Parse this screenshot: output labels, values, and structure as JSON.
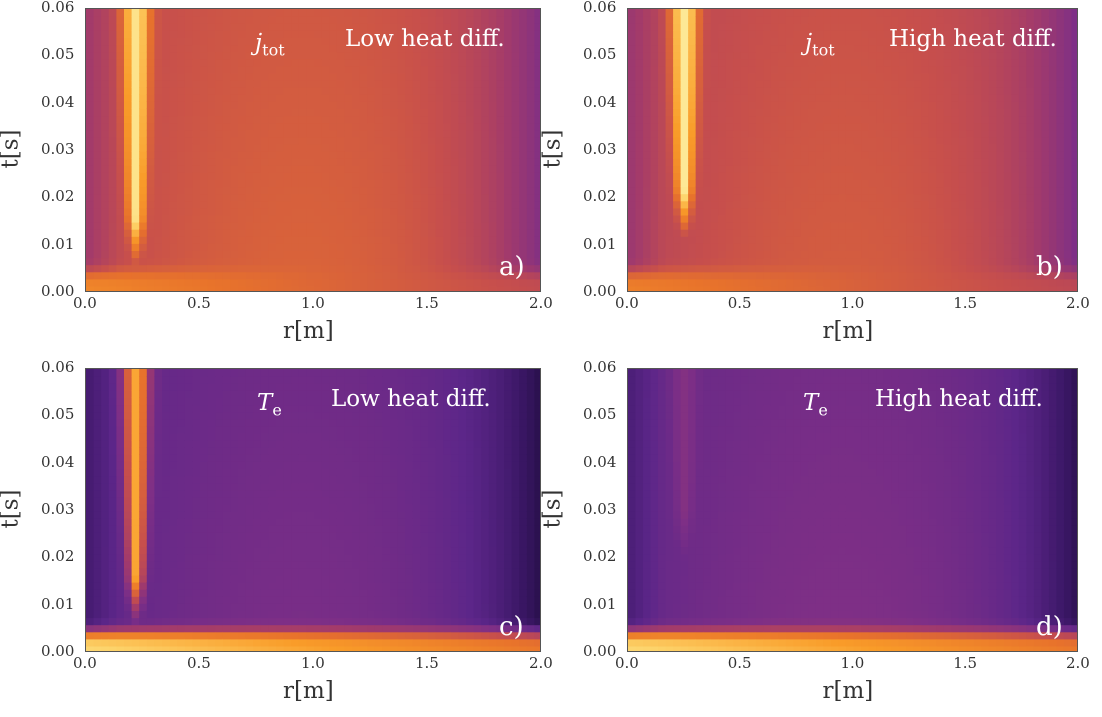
{
  "chart_data": [
    {
      "type": "heatmap",
      "panel_label": "a)",
      "quantity_symbol": "j",
      "quantity_subscript": "tot",
      "annotation": "Low heat diff.",
      "xlabel": "r[m]",
      "ylabel": "t[s]",
      "xlim": [
        0.0,
        2.0
      ],
      "ylim": [
        0.0,
        0.06
      ],
      "xticks": [
        "0.0",
        "0.5",
        "1.0",
        "1.5",
        "2.0"
      ],
      "yticks": [
        "0.00",
        "0.01",
        "0.02",
        "0.03",
        "0.04",
        "0.05",
        "0.06"
      ],
      "colormap": [
        "#1e0c3a",
        "#3b1766",
        "#5c2689",
        "#7e2f86",
        "#a13a6c",
        "#c74f4c",
        "#e8732b",
        "#f99c29",
        "#fdd46b",
        "#fdf0a6"
      ],
      "features": {
        "channel_r": 0.22,
        "channel_onset_t": 0.006,
        "base_level": 0.52,
        "channel_level": 0.95,
        "early_layer_level": 0.72
      }
    },
    {
      "type": "heatmap",
      "panel_label": "b)",
      "quantity_symbol": "j",
      "quantity_subscript": "tot",
      "annotation": "High heat diff.",
      "xlabel": "r[m]",
      "ylabel": "t[s]",
      "xlim": [
        0.0,
        2.0
      ],
      "ylim": [
        0.0,
        0.06
      ],
      "xticks": [
        "0.0",
        "0.5",
        "1.0",
        "1.5",
        "2.0"
      ],
      "yticks": [
        "0.00",
        "0.01",
        "0.02",
        "0.03",
        "0.04",
        "0.05",
        "0.06"
      ],
      "colormap": [
        "#1e0c3a",
        "#3b1766",
        "#5c2689",
        "#7e2f86",
        "#a13a6c",
        "#c74f4c",
        "#e8732b",
        "#f99c29",
        "#fdd46b",
        "#fdf0a6"
      ],
      "features": {
        "channel_r": 0.25,
        "channel_onset_t": 0.012,
        "base_level": 0.5,
        "channel_level": 0.97,
        "early_layer_level": 0.7
      }
    },
    {
      "type": "heatmap",
      "panel_label": "c)",
      "quantity_symbol": "T",
      "quantity_subscript": "e",
      "annotation": "Low heat diff.",
      "xlabel": "r[m]",
      "ylabel": "t[s]",
      "xlim": [
        0.0,
        2.0
      ],
      "ylim": [
        0.0,
        0.06
      ],
      "xticks": [
        "0.0",
        "0.5",
        "1.0",
        "1.5",
        "2.0"
      ],
      "yticks": [
        "0.00",
        "0.01",
        "0.02",
        "0.03",
        "0.04",
        "0.05",
        "0.06"
      ],
      "colormap": [
        "#1e0c3a",
        "#3b1766",
        "#5c2689",
        "#7e2f86",
        "#a13a6c",
        "#c74f4c",
        "#e8732b",
        "#f99c29",
        "#fdd46b",
        "#fdf0a6"
      ],
      "features": {
        "channel_r": 0.22,
        "channel_onset_t": 0.006,
        "base_level": 0.22,
        "channel_level": 0.8,
        "early_layer_level": 0.9
      }
    },
    {
      "type": "heatmap",
      "panel_label": "d)",
      "quantity_symbol": "T",
      "quantity_subscript": "e",
      "annotation": "High heat diff.",
      "xlabel": "r[m]",
      "ylabel": "t[s]",
      "xlim": [
        0.0,
        2.0
      ],
      "ylim": [
        0.0,
        0.06
      ],
      "xticks": [
        "0.0",
        "0.5",
        "1.0",
        "1.5",
        "2.0"
      ],
      "yticks": [
        "0.00",
        "0.01",
        "0.02",
        "0.03",
        "0.04",
        "0.05",
        "0.06"
      ],
      "colormap": [
        "#1e0c3a",
        "#3b1766",
        "#5c2689",
        "#7e2f86",
        "#a13a6c",
        "#c74f4c",
        "#e8732b",
        "#f99c29",
        "#fdd46b",
        "#fdf0a6"
      ],
      "features": {
        "channel_r": 0.25,
        "channel_onset_t": 0.02,
        "base_level": 0.24,
        "channel_level": 0.35,
        "early_layer_level": 0.9
      }
    }
  ]
}
